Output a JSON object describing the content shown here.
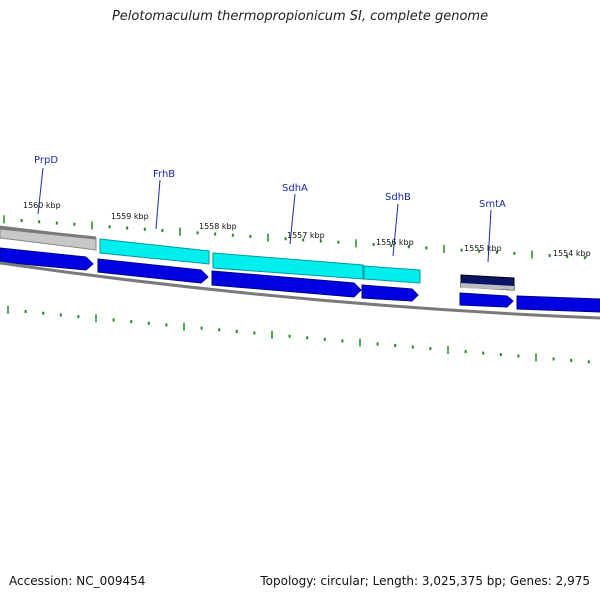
{
  "title": "Pelotomaculum thermopropionicum SI, complete genome",
  "footer": {
    "accession": "Accession: NC_009454",
    "stats": "Topology: circular; Length: 3,025,375 bp; Genes: 2,975"
  },
  "scale_labels": [
    "1560 kbp",
    "1559 kbp",
    "1558 kbp",
    "1557 kbp",
    "1556 kbp",
    "1555 kbp",
    "1554 kbp"
  ],
  "gene_labels": [
    "PrpD",
    "FrhB",
    "SdhA",
    "SdhB",
    "SmtA"
  ],
  "colors": {
    "cds_forward": "#0000e0",
    "cds_highlight": "#00e8e8",
    "cds_gray": "#c4c4c4",
    "cds_navy": "#0a1466",
    "backbone": "#808080",
    "tick": "#1f8a1f",
    "label": "#1a2aa8"
  }
}
